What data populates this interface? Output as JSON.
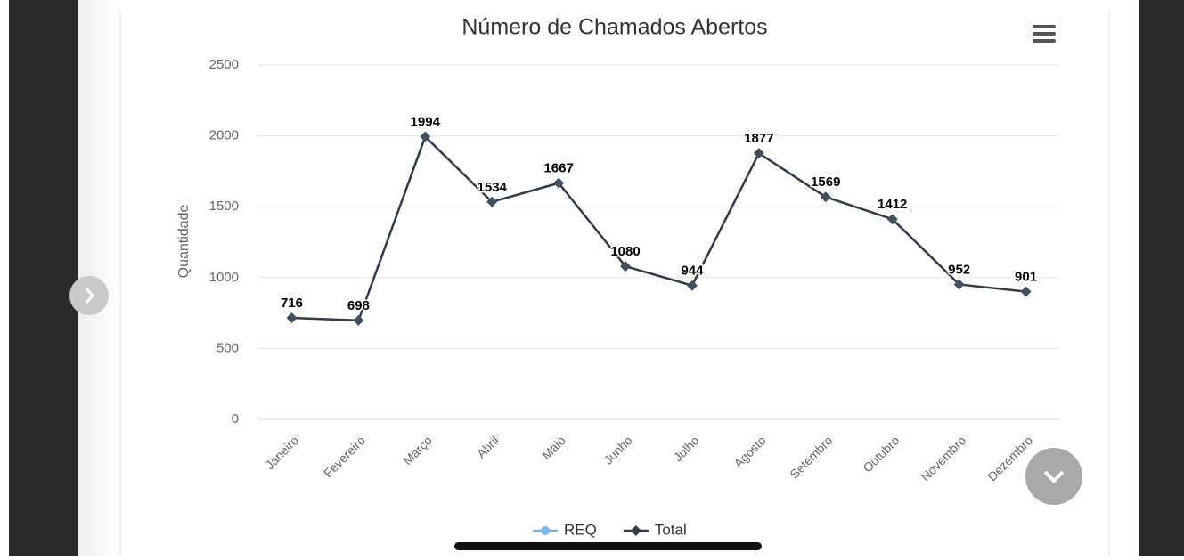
{
  "chart_data": {
    "type": "line",
    "title": "Número de Chamados Abertos",
    "y_label": "Quantidade",
    "categories": [
      "Janeiro",
      "Fevereiro",
      "Março",
      "Abril",
      "Maio",
      "Junho",
      "Julho",
      "Agosto",
      "Setembro",
      "Outubro",
      "Novembro",
      "Dezembro"
    ],
    "series": [
      {
        "name": "REQ",
        "color": "#7cb5ec",
        "values": [
          null,
          null,
          null,
          null,
          null,
          null,
          null,
          null,
          null,
          null,
          null,
          null
        ]
      },
      {
        "name": "Total",
        "color": "#333a44",
        "values": [
          716,
          698,
          1994,
          1534,
          1667,
          1080,
          944,
          1877,
          1569,
          1412,
          952,
          901
        ]
      }
    ],
    "ylim": [
      0,
      2500
    ],
    "yticks": [
      0,
      500,
      1000,
      1500,
      2000,
      2500
    ],
    "grid": true,
    "legend": "bottom"
  }
}
